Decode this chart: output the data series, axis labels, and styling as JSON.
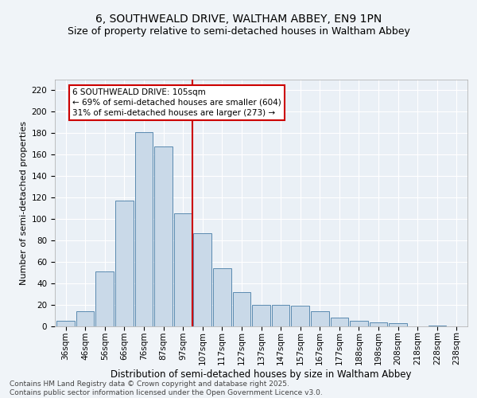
{
  "title": "6, SOUTHWEALD DRIVE, WALTHAM ABBEY, EN9 1PN",
  "subtitle": "Size of property relative to semi-detached houses in Waltham Abbey",
  "xlabel": "Distribution of semi-detached houses by size in Waltham Abbey",
  "ylabel": "Number of semi-detached properties",
  "categories": [
    "36sqm",
    "46sqm",
    "56sqm",
    "66sqm",
    "76sqm",
    "87sqm",
    "97sqm",
    "107sqm",
    "117sqm",
    "127sqm",
    "137sqm",
    "147sqm",
    "157sqm",
    "167sqm",
    "177sqm",
    "188sqm",
    "198sqm",
    "208sqm",
    "218sqm",
    "228sqm",
    "238sqm"
  ],
  "values": [
    5,
    14,
    51,
    117,
    181,
    168,
    105,
    87,
    54,
    32,
    20,
    20,
    19,
    14,
    8,
    5,
    4,
    3,
    0,
    1,
    0
  ],
  "bar_color": "#c9d9e8",
  "bar_edge_color": "#5a8ab0",
  "vline_x": 6.5,
  "vline_color": "#cc0000",
  "annotation_line1": "6 SOUTHWEALD DRIVE: 105sqm",
  "annotation_line2": "← 69% of semi-detached houses are smaller (604)",
  "annotation_line3": "31% of semi-detached houses are larger (273) →",
  "annotation_box_edge_color": "#cc0000",
  "ylim": [
    0,
    230
  ],
  "yticks": [
    0,
    20,
    40,
    60,
    80,
    100,
    120,
    140,
    160,
    180,
    200,
    220
  ],
  "footer_text": "Contains HM Land Registry data © Crown copyright and database right 2025.\nContains public sector information licensed under the Open Government Licence v3.0.",
  "bg_color": "#f0f4f8",
  "plot_bg_color": "#eaf0f6",
  "grid_color": "#ffffff",
  "title_fontsize": 10,
  "subtitle_fontsize": 9,
  "xlabel_fontsize": 8.5,
  "ylabel_fontsize": 8,
  "tick_fontsize": 7.5,
  "annotation_fontsize": 7.5,
  "footer_fontsize": 6.5
}
